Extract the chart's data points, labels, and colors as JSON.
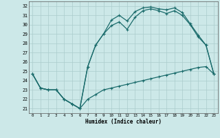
{
  "xlabel": "Humidex (Indice chaleur)",
  "xlim": [
    -0.5,
    23.5
  ],
  "ylim": [
    20.5,
    32.5
  ],
  "yticks": [
    21,
    22,
    23,
    24,
    25,
    26,
    27,
    28,
    29,
    30,
    31,
    32
  ],
  "xticks": [
    0,
    1,
    2,
    3,
    4,
    5,
    6,
    7,
    8,
    9,
    10,
    11,
    12,
    13,
    14,
    15,
    16,
    17,
    18,
    19,
    20,
    21,
    22,
    23
  ],
  "bg_color": "#cce8e8",
  "grid_color": "#aacccc",
  "line_color": "#1a6b6b",
  "line1_x": [
    0,
    1,
    2,
    3,
    4,
    5,
    6,
    7,
    8,
    9,
    10,
    11,
    12,
    13,
    14,
    15,
    16,
    17,
    18,
    19,
    20,
    21,
    22,
    23
  ],
  "line1_y": [
    24.7,
    23.2,
    23.0,
    23.0,
    22.0,
    21.5,
    21.0,
    22.0,
    22.5,
    23.0,
    23.2,
    23.4,
    23.6,
    23.8,
    24.0,
    24.2,
    24.4,
    24.6,
    24.8,
    25.0,
    25.2,
    25.4,
    25.5,
    24.7
  ],
  "line2_x": [
    0,
    1,
    2,
    3,
    4,
    5,
    6,
    7,
    8,
    9,
    10,
    11,
    12,
    13,
    14,
    15,
    16,
    17,
    18,
    19,
    20,
    21,
    22,
    23
  ],
  "line2_y": [
    24.7,
    23.2,
    23.0,
    23.0,
    22.0,
    21.5,
    21.0,
    25.5,
    27.8,
    29.0,
    29.9,
    30.3,
    29.5,
    30.8,
    31.5,
    31.7,
    31.5,
    31.2,
    31.5,
    31.0,
    30.0,
    28.7,
    27.8,
    24.7
  ],
  "line3_x": [
    0,
    1,
    2,
    3,
    4,
    5,
    6,
    7,
    8,
    9,
    10,
    11,
    12,
    13,
    14,
    15,
    16,
    17,
    18,
    19,
    20,
    21,
    22,
    23
  ],
  "line3_y": [
    24.7,
    23.2,
    23.0,
    23.0,
    22.0,
    21.5,
    21.0,
    25.5,
    27.8,
    29.0,
    30.5,
    31.0,
    30.4,
    31.4,
    31.8,
    31.9,
    31.7,
    31.6,
    31.8,
    31.3,
    30.1,
    28.9,
    27.8,
    24.7
  ]
}
